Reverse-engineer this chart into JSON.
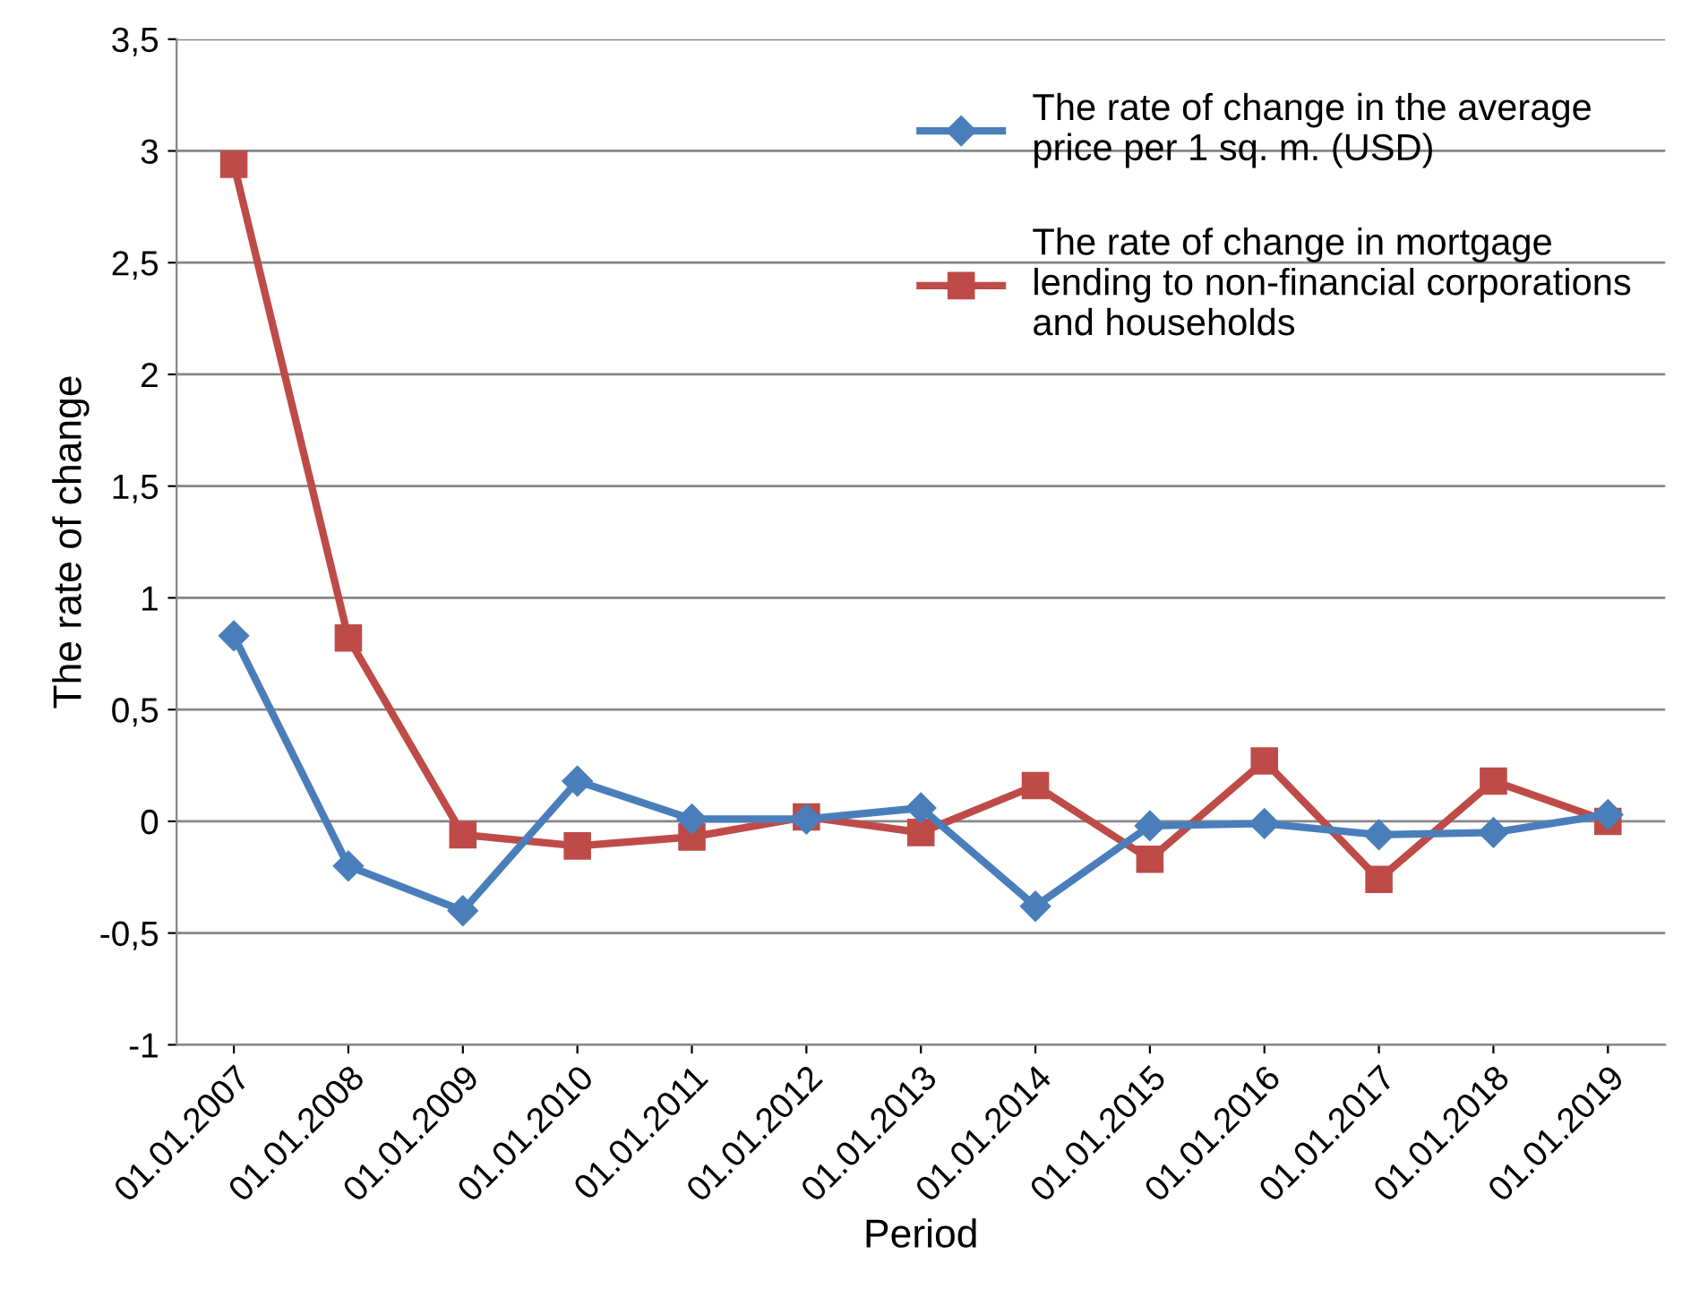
{
  "chart_data": {
    "type": "line",
    "xlabel": "Period",
    "ylabel": "The rate of change",
    "categories": [
      "01.01.2007",
      "01.01.2008",
      "01.01.2009",
      "01.01.2010",
      "01.01.2011",
      "01.01.2012",
      "01.01.2013",
      "01.01.2014",
      "01.01.2015",
      "01.01.2016",
      "01.01.2017",
      "01.01.2018",
      "01.01.2019"
    ],
    "series": [
      {
        "name": "The rate of change in the average\nprice per 1 sq. m. (USD)",
        "color": "#4a7ebb",
        "marker": "diamond",
        "values": [
          0.83,
          -0.2,
          -0.4,
          0.18,
          0.01,
          0.01,
          0.06,
          -0.38,
          -0.02,
          -0.01,
          -0.06,
          -0.05,
          0.03
        ]
      },
      {
        "name": "The rate of change in mortgage\nlending to non-financial corporations\nand households",
        "color": "#be4b48",
        "marker": "square",
        "values": [
          2.94,
          0.82,
          -0.06,
          -0.11,
          -0.07,
          0.02,
          -0.05,
          0.16,
          -0.17,
          0.27,
          -0.26,
          0.18,
          0.0
        ]
      }
    ],
    "ylim": [
      -1,
      3.5
    ],
    "yticks": [
      -1,
      {
        "value": -0.5,
        "label": "-0,5"
      },
      0,
      {
        "value": 0.5,
        "label": "0,5"
      },
      1,
      {
        "value": 1.5,
        "label": "1,5"
      },
      2,
      {
        "value": 2.5,
        "label": "2,5"
      },
      3,
      {
        "value": 3.5,
        "label": "3,5"
      }
    ],
    "grid": "y",
    "legend": "top right"
  }
}
